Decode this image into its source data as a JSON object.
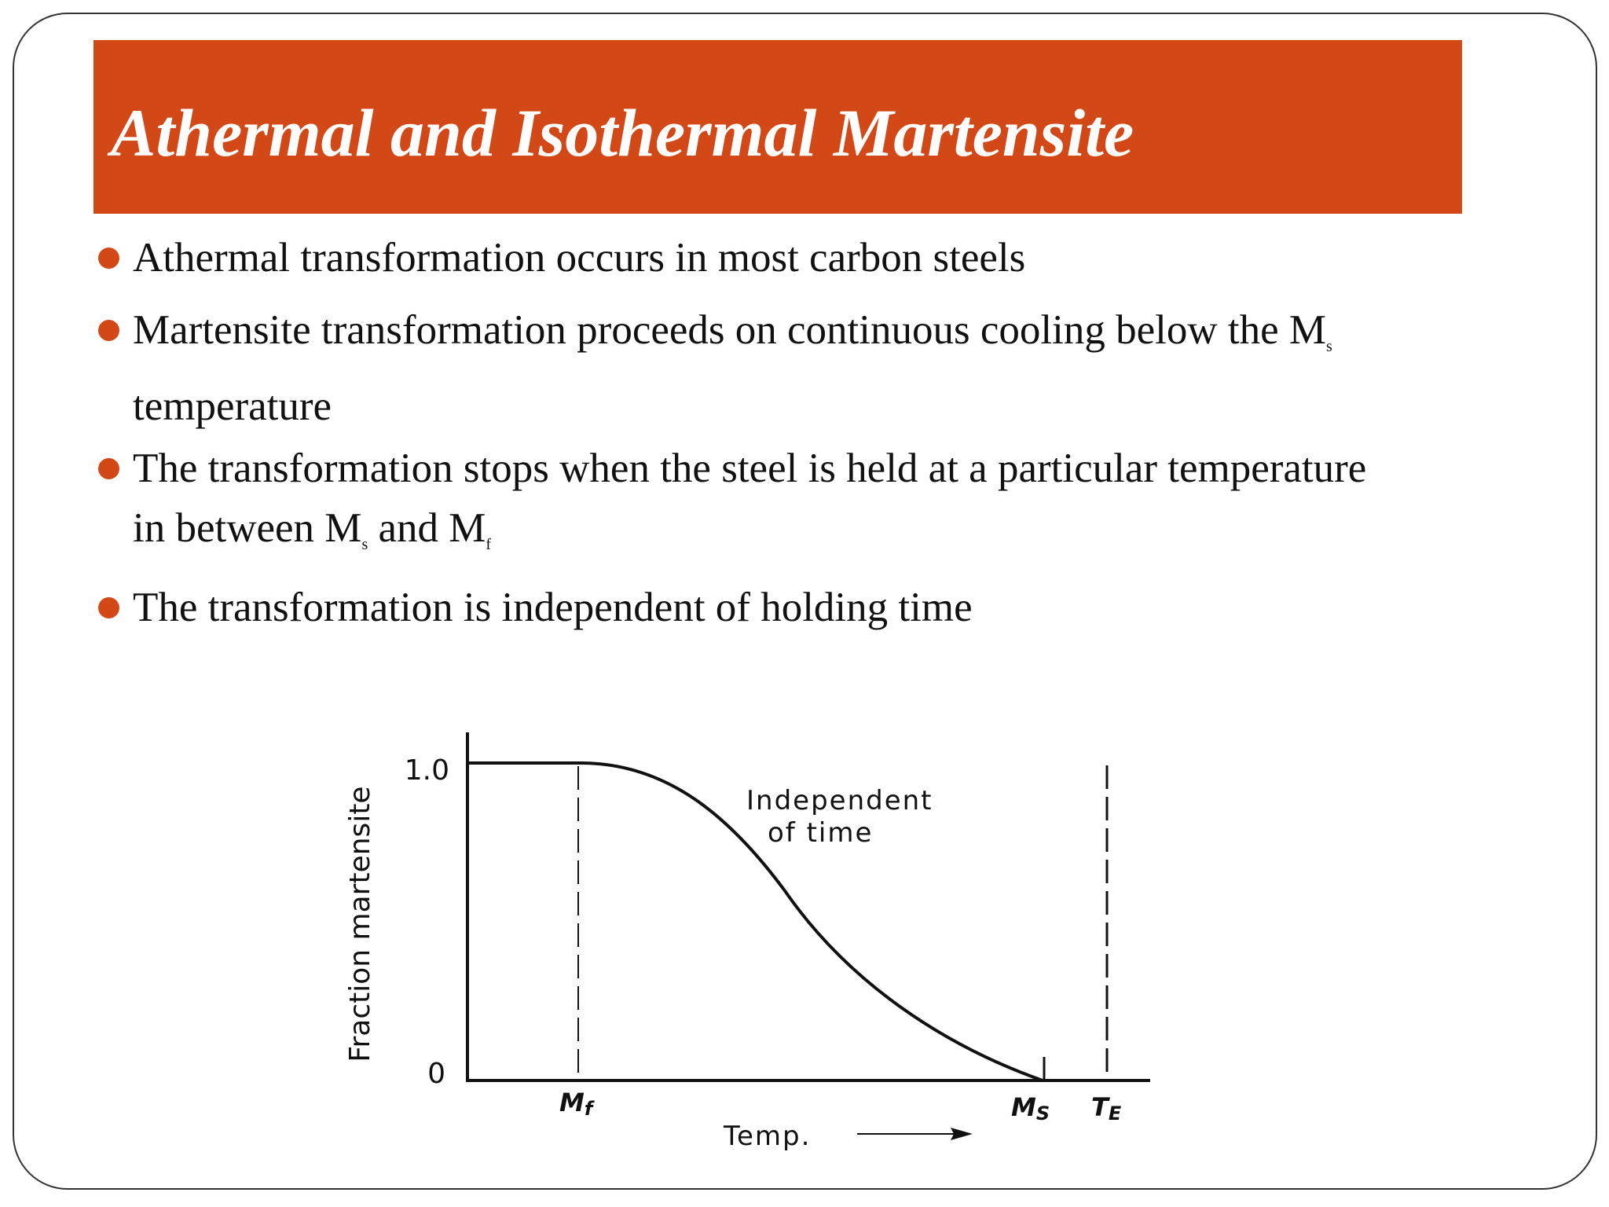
{
  "title": "Athermal and Isothermal Martensite",
  "bullets": [
    [
      {
        "text": "Athermal transformation occurs in most carbon steels"
      }
    ],
    [
      {
        "text": "Martensite transformation proceeds on continuous cooling below the M"
      },
      {
        "sub": "s"
      },
      {
        "text": " temperature"
      }
    ],
    [
      {
        "text": "The transformation stops when the steel is held at a particular temperature in between M"
      },
      {
        "sub": "s"
      },
      {
        "text": " and M"
      },
      {
        "sub": "f"
      }
    ],
    [
      {
        "text": "The transformation is independent of holding time"
      }
    ]
  ],
  "figure": {
    "y_label": "Fraction martensite",
    "y_top": "1.0",
    "y_bottom": "0",
    "annotation": [
      "Independent",
      "of time"
    ],
    "x_label": "Temp.",
    "mf": {
      "text": "M",
      "sub": "f"
    },
    "ms": {
      "text": "M",
      "sub": "S"
    },
    "te": {
      "text": "T",
      "sub": "E"
    }
  }
}
